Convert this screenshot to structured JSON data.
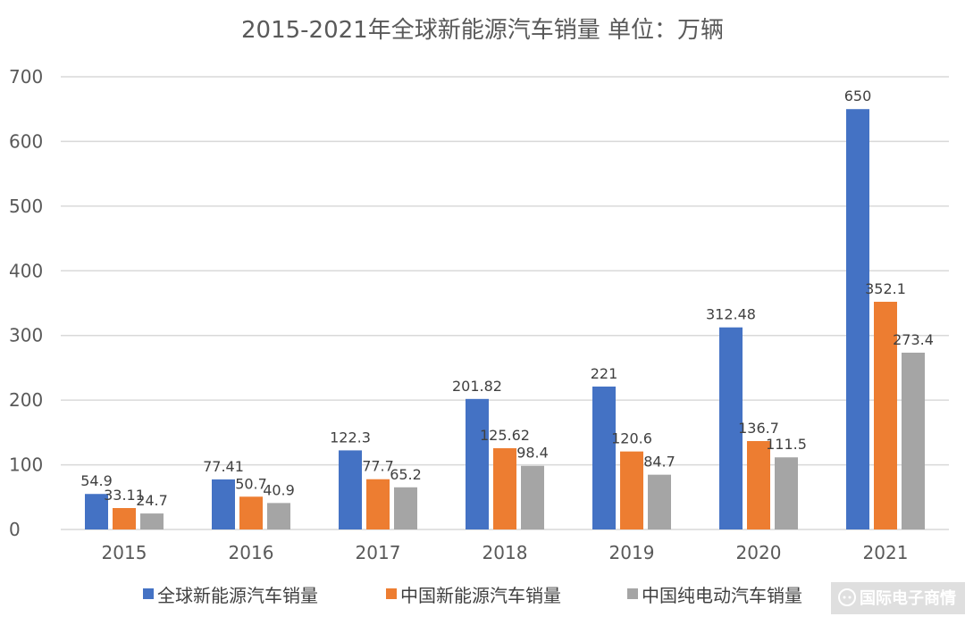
{
  "chart_data": {
    "type": "bar",
    "title": "2015-2021年全球新能源汽车销量 单位：万辆",
    "xlabel": "",
    "ylabel": "",
    "ylim": [
      0,
      700
    ],
    "yticks": [
      0,
      100,
      200,
      300,
      400,
      500,
      600,
      700
    ],
    "grid": true,
    "legend_position": "bottom",
    "categories": [
      "2015",
      "2016",
      "2017",
      "2018",
      "2019",
      "2020",
      "2021"
    ],
    "series": [
      {
        "name": "全球新能源汽车销量",
        "color": "#4472C4",
        "values": [
          54.9,
          77.41,
          122.3,
          201.82,
          221,
          312.48,
          650
        ],
        "labels": [
          "54.9",
          "77.41",
          "122.3",
          "201.82",
          "221",
          "312.48",
          "650"
        ]
      },
      {
        "name": "中国新能源汽车销量",
        "color": "#ED7D31",
        "values": [
          33.11,
          50.7,
          77.7,
          125.62,
          120.6,
          136.7,
          352.1
        ],
        "labels": [
          "33.11",
          "50.7",
          "77.7",
          "125.62",
          "120.6",
          "136.7",
          "352.1"
        ]
      },
      {
        "name": "中国纯电动汽车销量",
        "color": "#A5A5A5",
        "values": [
          24.7,
          40.9,
          65.2,
          98.4,
          84.7,
          111.5,
          273.4
        ],
        "labels": [
          "24.7",
          "40.9",
          "65.2",
          "98.4",
          "84.7",
          "111.5",
          "273.4"
        ]
      }
    ]
  },
  "watermark": {
    "text": "国际电子商情",
    "icon": "speech-bubble-icon"
  }
}
